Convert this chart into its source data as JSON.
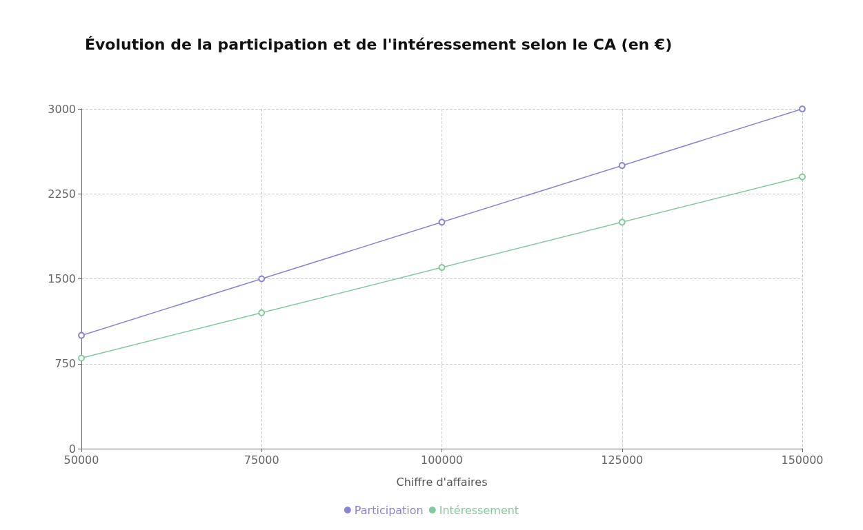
{
  "chart_data": {
    "type": "line",
    "title": "Évolution de la participation et de l'intéressement selon le CA (en €)",
    "xlabel": "Chiffre d'affaires",
    "x": [
      50000,
      75000,
      100000,
      125000,
      150000
    ],
    "series": [
      {
        "name": "Participation",
        "color": "#8884d8",
        "values": [
          1000,
          1500,
          2000,
          2500,
          3000
        ]
      },
      {
        "name": "Intéressement",
        "color": "#82ca9d",
        "values": [
          800,
          1200,
          1600,
          2000,
          2400
        ]
      }
    ],
    "xlim": [
      50000,
      150000
    ],
    "xticks": [
      50000,
      75000,
      100000,
      125000,
      150000
    ],
    "ylim": [
      0,
      3000
    ],
    "yticks": [
      0,
      750,
      1500,
      2250,
      3000
    ],
    "grid": true,
    "legend": "bottom",
    "marker": "circle",
    "line_style": "solid"
  }
}
